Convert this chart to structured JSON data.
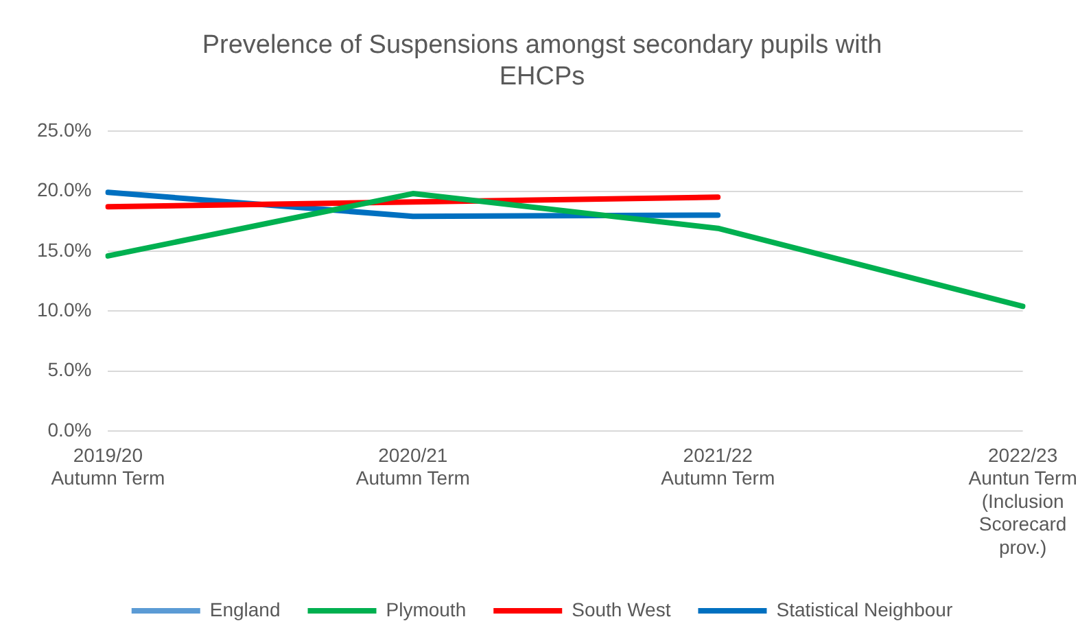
{
  "chart_data": {
    "type": "line",
    "title": "Prevelence of Suspensions amongst secondary pupils with EHCPs",
    "categories": [
      "2019/20 Autumn Term",
      "2020/21 Autumn Term",
      "2021/22 Autumn Term",
      "2022/23 Auntun Term (Inclusion Scorecard prov.)"
    ],
    "series": [
      {
        "name": "England",
        "color": "#5b9bd5",
        "values": [
          null,
          null,
          null,
          null
        ]
      },
      {
        "name": "Plymouth",
        "color": "#00b050",
        "values": [
          14.6,
          19.8,
          16.9,
          10.4
        ]
      },
      {
        "name": "South West",
        "color": "#ff0000",
        "values": [
          18.7,
          19.1,
          19.5,
          null
        ]
      },
      {
        "name": "Statistical Neighbour",
        "color": "#0070c0",
        "values": [
          19.9,
          17.9,
          18.0,
          null
        ]
      }
    ],
    "ylim": [
      0,
      25
    ],
    "yticks": [
      {
        "value": 0,
        "label": "0.0%"
      },
      {
        "value": 5,
        "label": "5.0%"
      },
      {
        "value": 10,
        "label": "10.0%"
      },
      {
        "value": 15,
        "label": "15.0%"
      },
      {
        "value": 20,
        "label": "20.0%"
      },
      {
        "value": 25,
        "label": "25.0%"
      }
    ],
    "grid": "y",
    "legend": "bottom",
    "marker": "none",
    "line_style": "solid"
  }
}
